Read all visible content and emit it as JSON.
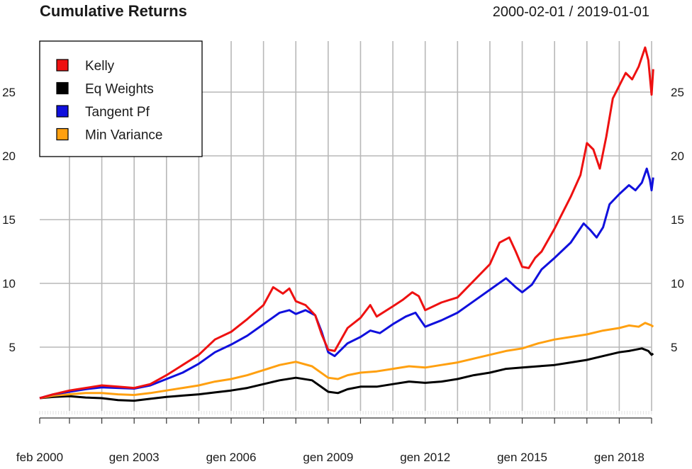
{
  "chart_data": {
    "type": "line",
    "title": "Cumulative Returns",
    "date_range": "2000-02-01 / 2019-01-01",
    "x_start": 2000.08,
    "x_end": 2019.0,
    "ylim": [
      0,
      29
    ],
    "y_ticks": [
      5,
      10,
      15,
      20,
      25
    ],
    "x_ticks": [
      {
        "label": "feb 2000",
        "t": 2000.08
      },
      {
        "label": "gen 2003",
        "t": 2003.0
      },
      {
        "label": "gen 2006",
        "t": 2006.0
      },
      {
        "label": "gen 2009",
        "t": 2009.0
      },
      {
        "label": "gen 2012",
        "t": 2012.0
      },
      {
        "label": "gen 2015",
        "t": 2015.0
      },
      {
        "label": "gen 2018",
        "t": 2018.0
      }
    ],
    "legend_position": "top-left",
    "series": [
      {
        "name": "Kelly",
        "color": "#ee1111",
        "points": [
          [
            2000.08,
            1.0
          ],
          [
            2000.5,
            1.3
          ],
          [
            2001.0,
            1.6
          ],
          [
            2001.5,
            1.8
          ],
          [
            2002.0,
            2.0
          ],
          [
            2002.5,
            1.9
          ],
          [
            2003.0,
            1.8
          ],
          [
            2003.5,
            2.1
          ],
          [
            2004.0,
            2.8
          ],
          [
            2004.5,
            3.6
          ],
          [
            2005.0,
            4.4
          ],
          [
            2005.5,
            5.6
          ],
          [
            2006.0,
            6.2
          ],
          [
            2006.5,
            7.2
          ],
          [
            2007.0,
            8.3
          ],
          [
            2007.3,
            9.7
          ],
          [
            2007.6,
            9.2
          ],
          [
            2007.8,
            9.6
          ],
          [
            2008.0,
            8.6
          ],
          [
            2008.3,
            8.3
          ],
          [
            2008.6,
            7.5
          ],
          [
            2008.8,
            6.0
          ],
          [
            2009.0,
            4.8
          ],
          [
            2009.2,
            4.7
          ],
          [
            2009.6,
            6.5
          ],
          [
            2010.0,
            7.3
          ],
          [
            2010.3,
            8.3
          ],
          [
            2010.5,
            7.4
          ],
          [
            2011.0,
            8.2
          ],
          [
            2011.3,
            8.7
          ],
          [
            2011.6,
            9.3
          ],
          [
            2011.8,
            9.0
          ],
          [
            2012.0,
            7.9
          ],
          [
            2012.5,
            8.5
          ],
          [
            2013.0,
            8.9
          ],
          [
            2013.5,
            10.2
          ],
          [
            2014.0,
            11.5
          ],
          [
            2014.3,
            13.2
          ],
          [
            2014.6,
            13.6
          ],
          [
            2014.8,
            12.5
          ],
          [
            2015.0,
            11.3
          ],
          [
            2015.2,
            11.2
          ],
          [
            2015.4,
            12.0
          ],
          [
            2015.6,
            12.5
          ],
          [
            2016.0,
            14.3
          ],
          [
            2016.5,
            16.8
          ],
          [
            2016.8,
            18.5
          ],
          [
            2017.0,
            21.0
          ],
          [
            2017.2,
            20.5
          ],
          [
            2017.4,
            19.0
          ],
          [
            2017.6,
            21.5
          ],
          [
            2017.8,
            24.5
          ],
          [
            2018.0,
            25.5
          ],
          [
            2018.2,
            26.5
          ],
          [
            2018.4,
            26.0
          ],
          [
            2018.6,
            27.0
          ],
          [
            2018.8,
            28.5
          ],
          [
            2018.9,
            27.5
          ],
          [
            2019.0,
            24.8
          ],
          [
            2019.05,
            26.8
          ]
        ]
      },
      {
        "name": "Eq Weights",
        "color": "#000000",
        "points": [
          [
            2000.08,
            1.0
          ],
          [
            2000.5,
            1.1
          ],
          [
            2001.0,
            1.15
          ],
          [
            2001.5,
            1.05
          ],
          [
            2002.0,
            1.0
          ],
          [
            2002.5,
            0.85
          ],
          [
            2003.0,
            0.8
          ],
          [
            2003.5,
            0.95
          ],
          [
            2004.0,
            1.1
          ],
          [
            2004.5,
            1.2
          ],
          [
            2005.0,
            1.3
          ],
          [
            2005.5,
            1.45
          ],
          [
            2006.0,
            1.6
          ],
          [
            2006.5,
            1.8
          ],
          [
            2007.0,
            2.1
          ],
          [
            2007.5,
            2.4
          ],
          [
            2008.0,
            2.6
          ],
          [
            2008.5,
            2.4
          ],
          [
            2009.0,
            1.5
          ],
          [
            2009.3,
            1.4
          ],
          [
            2009.6,
            1.7
          ],
          [
            2010.0,
            1.9
          ],
          [
            2010.5,
            1.9
          ],
          [
            2011.0,
            2.1
          ],
          [
            2011.5,
            2.3
          ],
          [
            2012.0,
            2.2
          ],
          [
            2012.5,
            2.3
          ],
          [
            2013.0,
            2.5
          ],
          [
            2013.5,
            2.8
          ],
          [
            2014.0,
            3.0
          ],
          [
            2014.5,
            3.3
          ],
          [
            2015.0,
            3.4
          ],
          [
            2015.5,
            3.5
          ],
          [
            2016.0,
            3.6
          ],
          [
            2016.5,
            3.8
          ],
          [
            2017.0,
            4.0
          ],
          [
            2017.5,
            4.3
          ],
          [
            2018.0,
            4.6
          ],
          [
            2018.3,
            4.7
          ],
          [
            2018.7,
            4.9
          ],
          [
            2018.9,
            4.7
          ],
          [
            2019.0,
            4.4
          ],
          [
            2019.05,
            4.5
          ]
        ]
      },
      {
        "name": "Tangent Pf",
        "color": "#1010dd",
        "points": [
          [
            2000.08,
            1.0
          ],
          [
            2000.5,
            1.3
          ],
          [
            2001.0,
            1.5
          ],
          [
            2001.5,
            1.7
          ],
          [
            2002.0,
            1.85
          ],
          [
            2002.5,
            1.8
          ],
          [
            2003.0,
            1.75
          ],
          [
            2003.5,
            2.0
          ],
          [
            2004.0,
            2.5
          ],
          [
            2004.5,
            3.0
          ],
          [
            2005.0,
            3.7
          ],
          [
            2005.5,
            4.6
          ],
          [
            2006.0,
            5.2
          ],
          [
            2006.5,
            5.9
          ],
          [
            2007.0,
            6.8
          ],
          [
            2007.5,
            7.7
          ],
          [
            2007.8,
            7.9
          ],
          [
            2008.0,
            7.6
          ],
          [
            2008.3,
            7.9
          ],
          [
            2008.6,
            7.5
          ],
          [
            2008.8,
            6.2
          ],
          [
            2009.0,
            4.6
          ],
          [
            2009.2,
            4.3
          ],
          [
            2009.6,
            5.3
          ],
          [
            2010.0,
            5.8
          ],
          [
            2010.3,
            6.3
          ],
          [
            2010.6,
            6.1
          ],
          [
            2011.0,
            6.8
          ],
          [
            2011.4,
            7.4
          ],
          [
            2011.7,
            7.7
          ],
          [
            2012.0,
            6.6
          ],
          [
            2012.5,
            7.1
          ],
          [
            2013.0,
            7.7
          ],
          [
            2013.5,
            8.6
          ],
          [
            2014.0,
            9.5
          ],
          [
            2014.5,
            10.4
          ],
          [
            2014.8,
            9.7
          ],
          [
            2015.0,
            9.3
          ],
          [
            2015.3,
            9.9
          ],
          [
            2015.6,
            11.1
          ],
          [
            2016.0,
            12.0
          ],
          [
            2016.5,
            13.2
          ],
          [
            2016.9,
            14.7
          ],
          [
            2017.1,
            14.2
          ],
          [
            2017.3,
            13.6
          ],
          [
            2017.5,
            14.4
          ],
          [
            2017.7,
            16.2
          ],
          [
            2018.0,
            17.0
          ],
          [
            2018.3,
            17.7
          ],
          [
            2018.5,
            17.3
          ],
          [
            2018.7,
            17.9
          ],
          [
            2018.85,
            19.0
          ],
          [
            2018.95,
            18.1
          ],
          [
            2019.0,
            17.3
          ],
          [
            2019.05,
            18.3
          ]
        ]
      },
      {
        "name": "Min Variance",
        "color": "#ffa010",
        "points": [
          [
            2000.08,
            1.0
          ],
          [
            2000.5,
            1.2
          ],
          [
            2001.0,
            1.3
          ],
          [
            2001.5,
            1.4
          ],
          [
            2002.0,
            1.4
          ],
          [
            2002.5,
            1.3
          ],
          [
            2003.0,
            1.25
          ],
          [
            2003.5,
            1.4
          ],
          [
            2004.0,
            1.6
          ],
          [
            2004.5,
            1.8
          ],
          [
            2005.0,
            2.0
          ],
          [
            2005.5,
            2.3
          ],
          [
            2006.0,
            2.5
          ],
          [
            2006.5,
            2.8
          ],
          [
            2007.0,
            3.2
          ],
          [
            2007.5,
            3.6
          ],
          [
            2008.0,
            3.85
          ],
          [
            2008.5,
            3.5
          ],
          [
            2009.0,
            2.6
          ],
          [
            2009.3,
            2.5
          ],
          [
            2009.6,
            2.8
          ],
          [
            2010.0,
            3.0
          ],
          [
            2010.5,
            3.1
          ],
          [
            2011.0,
            3.3
          ],
          [
            2011.5,
            3.5
          ],
          [
            2012.0,
            3.4
          ],
          [
            2012.5,
            3.6
          ],
          [
            2013.0,
            3.8
          ],
          [
            2013.5,
            4.1
          ],
          [
            2014.0,
            4.4
          ],
          [
            2014.5,
            4.7
          ],
          [
            2015.0,
            4.9
          ],
          [
            2015.5,
            5.3
          ],
          [
            2016.0,
            5.6
          ],
          [
            2016.5,
            5.8
          ],
          [
            2017.0,
            6.0
          ],
          [
            2017.5,
            6.3
          ],
          [
            2018.0,
            6.5
          ],
          [
            2018.3,
            6.7
          ],
          [
            2018.6,
            6.6
          ],
          [
            2018.8,
            6.9
          ],
          [
            2019.0,
            6.7
          ],
          [
            2019.05,
            6.6
          ]
        ]
      }
    ]
  }
}
